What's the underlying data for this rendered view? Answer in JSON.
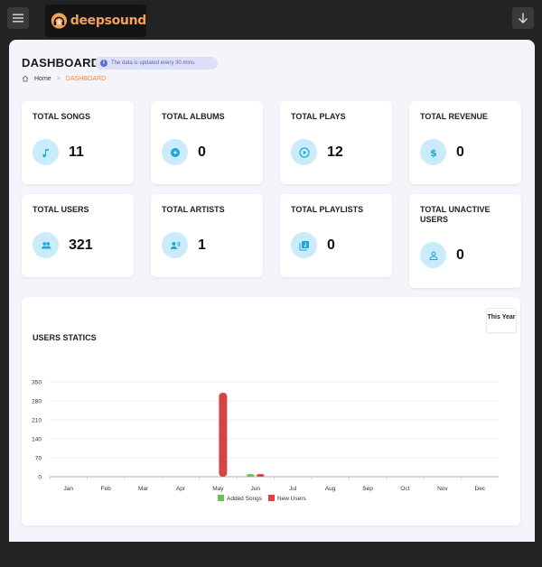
{
  "app": {
    "logo_text": "deepsound"
  },
  "header": {
    "title": "DASHBOARD",
    "info": "The data is updated every 30 mins.",
    "breadcrumb": {
      "home": "Home",
      "current": "DASHBOARD"
    }
  },
  "stats": [
    {
      "label": "TOTAL SONGS",
      "value": "11",
      "icon": "music-note-icon"
    },
    {
      "label": "TOTAL ALBUMS",
      "value": "0",
      "icon": "disc-icon"
    },
    {
      "label": "TOTAL PLAYS",
      "value": "12",
      "icon": "play-circle-icon"
    },
    {
      "label": "TOTAL REVENUE",
      "value": "0",
      "icon": "dollar-icon"
    },
    {
      "label": "TOTAL USERS",
      "value": "321",
      "icon": "users-icon"
    },
    {
      "label": "TOTAL ARTISTS",
      "value": "1",
      "icon": "artist-icon"
    },
    {
      "label": "TOTAL PLAYLISTS",
      "value": "0",
      "icon": "playlist-icon"
    },
    {
      "label": "TOTAL UNACTIVE USERS",
      "value": "0",
      "icon": "user-inactive-icon"
    }
  ],
  "chart": {
    "title": "USERS STATICS",
    "year_button": "This Year"
  },
  "colors": {
    "accent": "#e8894b",
    "icon_bg": "#c9ebfa",
    "icon_fg": "#1aa7d9",
    "added_songs": "#6dbf5b",
    "new_users": "#d64545"
  },
  "chart_data": {
    "type": "bar",
    "categories": [
      "Jan",
      "Feb",
      "Mar",
      "Apr",
      "May",
      "Jun",
      "Jul",
      "Aug",
      "Sep",
      "Oct",
      "Nov",
      "Dec"
    ],
    "series": [
      {
        "name": "Added Songs",
        "values": [
          0,
          0,
          0,
          0,
          0,
          10,
          0,
          0,
          0,
          0,
          0,
          0
        ]
      },
      {
        "name": "New Users",
        "values": [
          0,
          0,
          0,
          0,
          310,
          10,
          0,
          0,
          0,
          0,
          0,
          0
        ]
      }
    ],
    "yticks": [
      "350",
      "280",
      "210",
      "140",
      "70",
      "0"
    ],
    "ylim": [
      0,
      350
    ],
    "grid": true,
    "legend": "bottom"
  }
}
